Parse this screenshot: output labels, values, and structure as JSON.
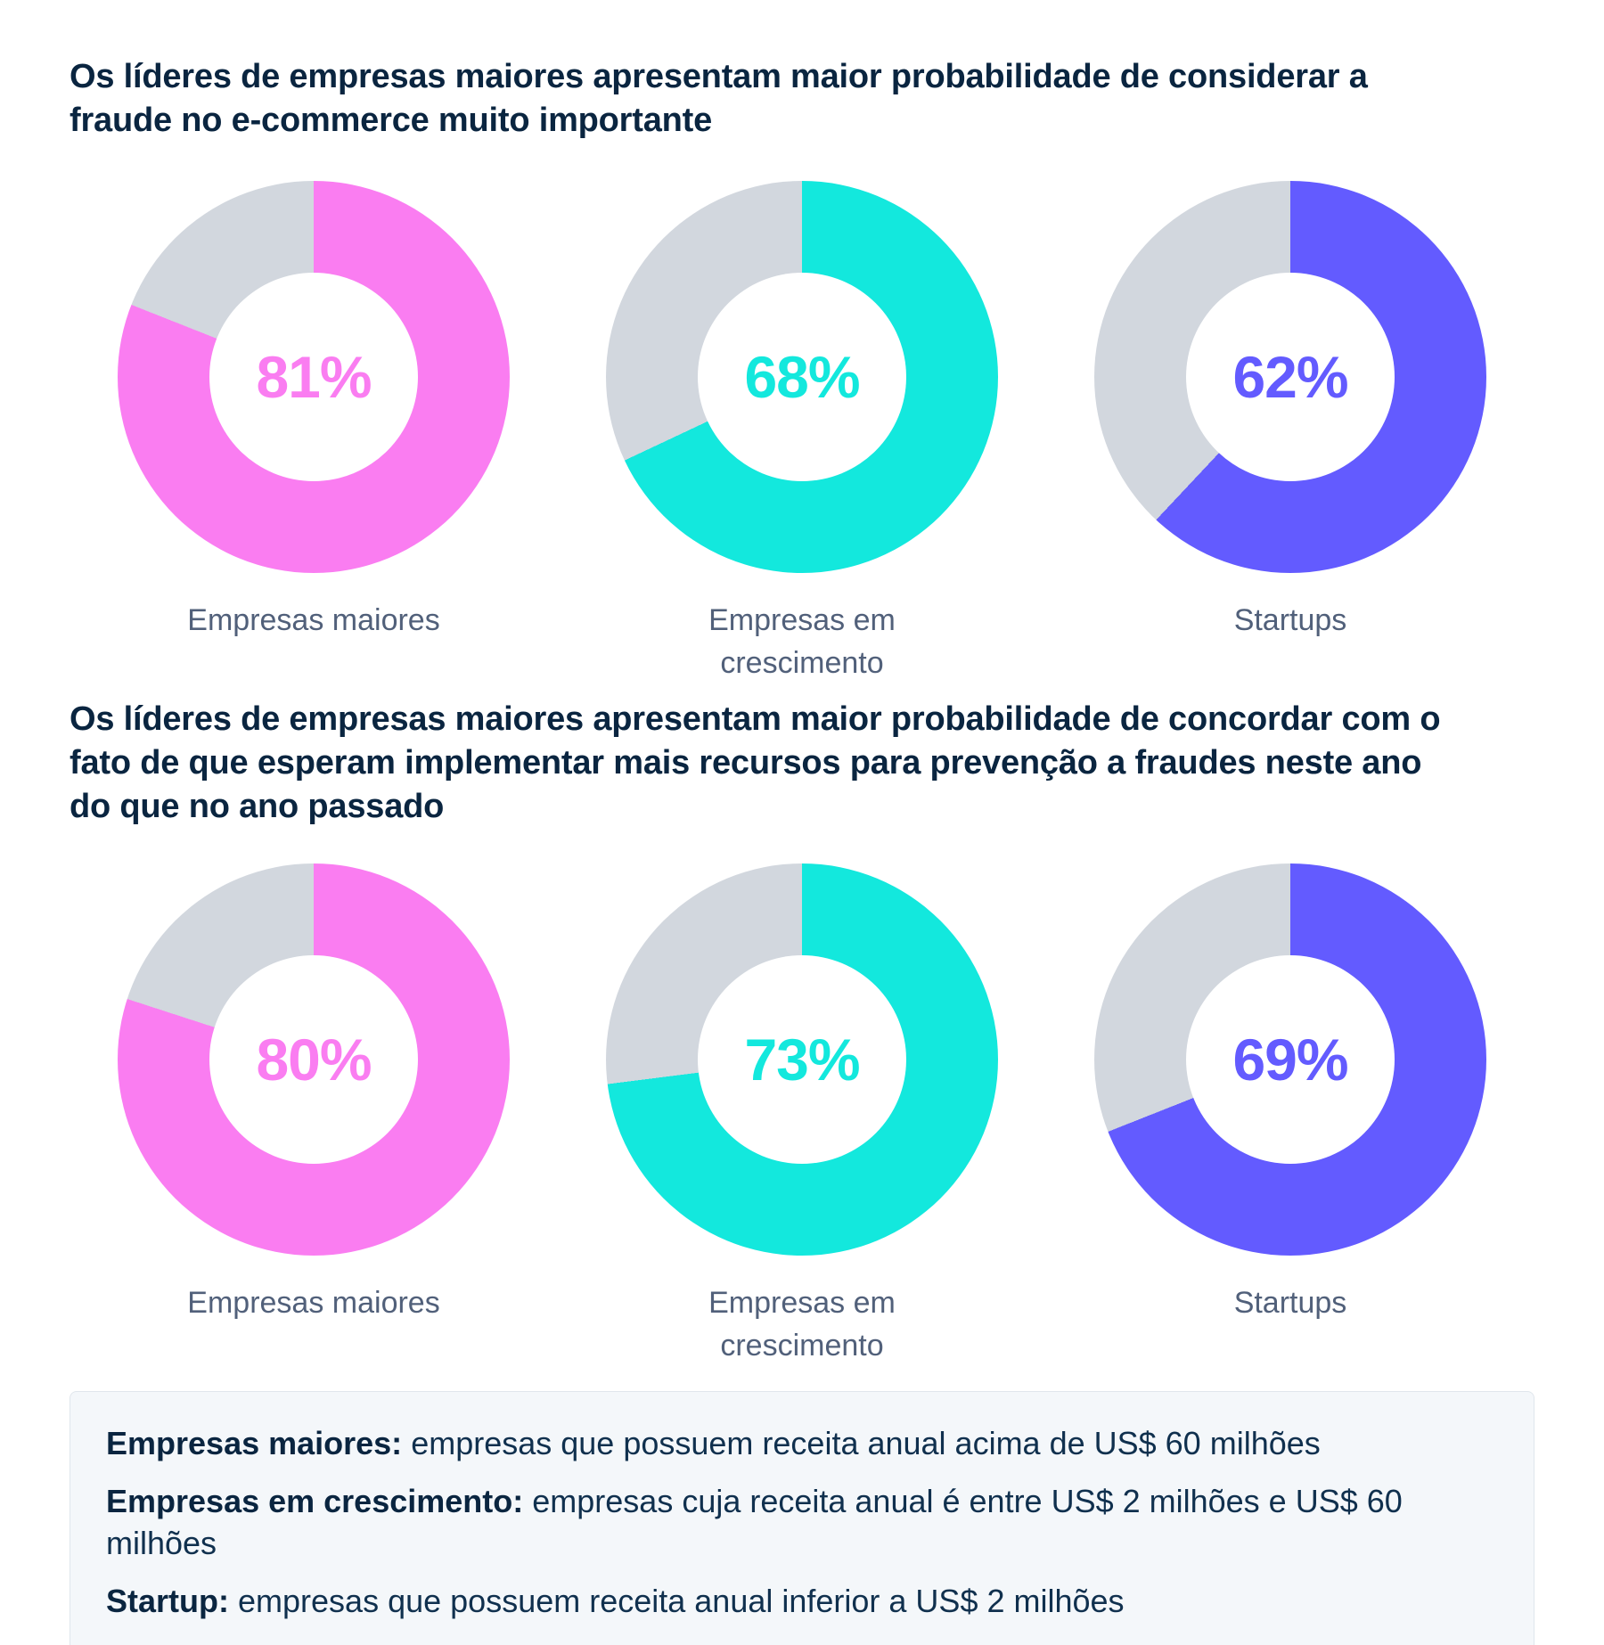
{
  "colors": {
    "pink": "#FA7DF1",
    "cyan": "#13E8DD",
    "purple": "#635BFF",
    "remainder_gray": "#D2D7DE",
    "title_navy": "#0A2540",
    "label_slate": "#51607A",
    "note_background": "#F4F7FA"
  },
  "sections": [
    {
      "title": "Os líderes de empresas maiores apresentam maior probabilidade de considerar a fraude no e-commerce muito importante",
      "charts": [
        {
          "category": "Empresas maiores",
          "value": 81,
          "label": "81%",
          "color": "#FA7DF1"
        },
        {
          "category": "Empresas em crescimento",
          "value": 68,
          "label": "68%",
          "color": "#13E8DD"
        },
        {
          "category": "Startups",
          "value": 62,
          "label": "62%",
          "color": "#635BFF"
        }
      ]
    },
    {
      "title": "Os líderes de empresas maiores apresentam maior probabilidade de concordar com o fato de que esperam implementar mais recursos para prevenção a fraudes neste ano do que no ano passado",
      "charts": [
        {
          "category": "Empresas maiores",
          "value": 80,
          "label": "80%",
          "color": "#FA7DF1"
        },
        {
          "category": "Empresas em crescimento",
          "value": 73,
          "label": "73%",
          "color": "#13E8DD"
        },
        {
          "category": "Startups",
          "value": 69,
          "label": "69%",
          "color": "#635BFF"
        }
      ]
    }
  ],
  "footnote": {
    "items": [
      {
        "term": "Empresas maiores:",
        "definition": "empresas que possuem receita anual acima de US$ 60 milhões"
      },
      {
        "term": "Empresas em crescimento:",
        "definition": "empresas cuja receita anual é entre US$ 2 milhões e US$ 60 milhões"
      },
      {
        "term": "Startup:",
        "definition": "empresas que possuem receita anual inferior a US$ 2 milhões"
      }
    ]
  },
  "chart_data": [
    {
      "type": "pie",
      "variant": "donut",
      "title": "Os líderes de empresas maiores apresentam maior probabilidade de considerar a fraude no e-commerce muito importante",
      "categories": [
        "Empresas maiores",
        "Empresas em crescimento",
        "Startups"
      ],
      "values": [
        81,
        68,
        62
      ],
      "unit": "%",
      "colors": [
        "#FA7DF1",
        "#13E8DD",
        "#635BFF"
      ],
      "remainder_color": "#D2D7DE",
      "start_angle": "12-o-clock",
      "direction": "clockwise",
      "value_labels": [
        "81%",
        "68%",
        "62%"
      ],
      "value_label_position": "center"
    },
    {
      "type": "pie",
      "variant": "donut",
      "title": "Os líderes de empresas maiores apresentam maior probabilidade de concordar com o fato de que esperam implementar mais recursos para prevenção a fraudes neste ano do que no ano passado",
      "categories": [
        "Empresas maiores",
        "Empresas em crescimento",
        "Startups"
      ],
      "values": [
        80,
        73,
        69
      ],
      "unit": "%",
      "colors": [
        "#FA7DF1",
        "#13E8DD",
        "#635BFF"
      ],
      "remainder_color": "#D2D7DE",
      "start_angle": "12-o-clock",
      "direction": "clockwise",
      "value_labels": [
        "80%",
        "73%",
        "69%"
      ],
      "value_label_position": "center"
    }
  ]
}
